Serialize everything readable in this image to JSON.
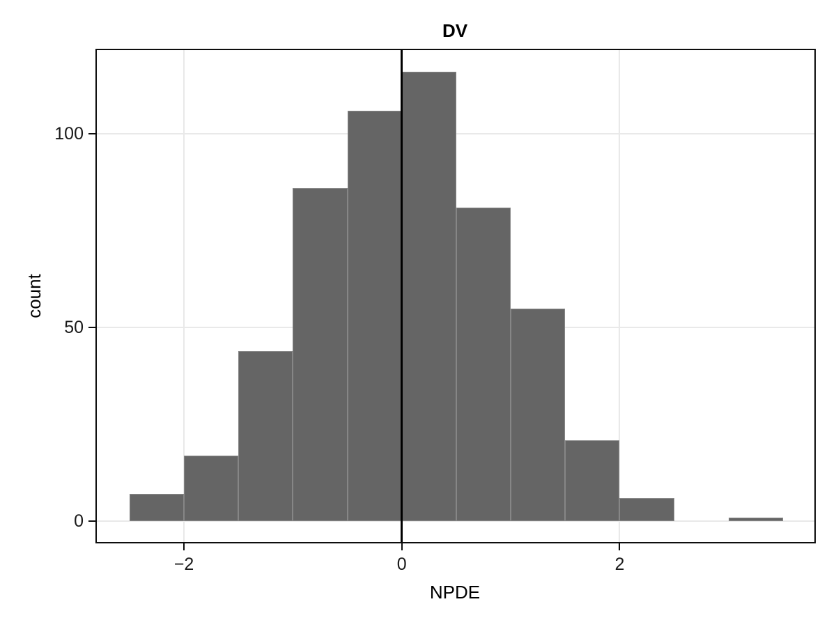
{
  "title": "DV",
  "axes": {
    "x_label": "NPDE",
    "y_label": "count",
    "x_ticks": [
      {
        "value": -2,
        "label": "−2"
      },
      {
        "value": 0,
        "label": "0"
      },
      {
        "value": 2,
        "label": "2"
      }
    ],
    "y_ticks": [
      {
        "value": 0,
        "label": "0"
      },
      {
        "value": 50,
        "label": "50"
      },
      {
        "value": 100,
        "label": "100"
      }
    ]
  },
  "chart_data": {
    "type": "bar",
    "subtype": "histogram",
    "title": "DV",
    "xlabel": "NPDE",
    "ylabel": "count",
    "binwidth": 0.5,
    "bins": [
      {
        "x0": -2.5,
        "x1": -2.0,
        "count": 7
      },
      {
        "x0": -2.0,
        "x1": -1.5,
        "count": 17
      },
      {
        "x0": -1.5,
        "x1": -1.0,
        "count": 44
      },
      {
        "x0": -1.0,
        "x1": -0.5,
        "count": 86
      },
      {
        "x0": -0.5,
        "x1": 0.0,
        "count": 106
      },
      {
        "x0": 0.0,
        "x1": 0.5,
        "count": 116
      },
      {
        "x0": 0.5,
        "x1": 1.0,
        "count": 81
      },
      {
        "x0": 1.0,
        "x1": 1.5,
        "count": 55
      },
      {
        "x0": 1.5,
        "x1": 2.0,
        "count": 21
      },
      {
        "x0": 2.0,
        "x1": 2.5,
        "count": 6
      },
      {
        "x0": 2.5,
        "x1": 3.0,
        "count": 0
      },
      {
        "x0": 3.0,
        "x1": 3.5,
        "count": 1
      }
    ],
    "reference_line_x": 0,
    "xlim": [
      -2.8,
      3.8
    ],
    "ylim": [
      -5.8,
      121.6
    ],
    "grid": true,
    "legend": "none"
  },
  "colors": {
    "bar_fill": "#656565",
    "grid": "#e9e9e9",
    "panel_border": "#0d0d0d",
    "reference_line": "#000000",
    "background": "#ffffff"
  }
}
